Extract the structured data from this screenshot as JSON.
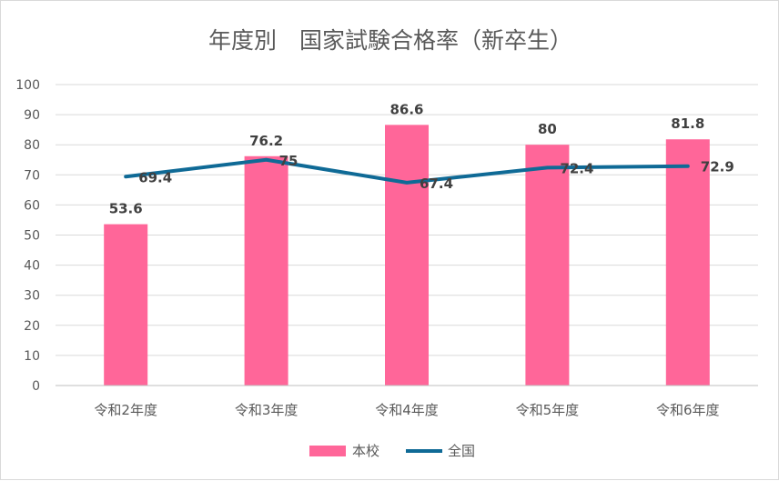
{
  "chart_data": {
    "type": "bar",
    "title": "年度別　国家試験合格率（新卒生）",
    "categories": [
      "令和2年度",
      "令和3年度",
      "令和4年度",
      "令和5年度",
      "令和6年度"
    ],
    "series": [
      {
        "name": "本校",
        "type": "bar",
        "color": "#ff6699",
        "values": [
          53.6,
          76.2,
          86.6,
          80,
          81.8
        ]
      },
      {
        "name": "全国",
        "type": "line",
        "color": "#0f6a96",
        "values": [
          69.4,
          75,
          67.4,
          72.4,
          72.9
        ]
      }
    ],
    "bar_labels": [
      "53.6",
      "76.2",
      "86.6",
      "80",
      "81.8"
    ],
    "line_labels": [
      "69.4",
      "75",
      "67.4",
      "72.4",
      "72.9"
    ],
    "yticks": [
      "0",
      "10",
      "20",
      "30",
      "40",
      "50",
      "60",
      "70",
      "80",
      "90",
      "100"
    ],
    "ylim": [
      0,
      100
    ],
    "grid": true,
    "legend": "bottom"
  }
}
